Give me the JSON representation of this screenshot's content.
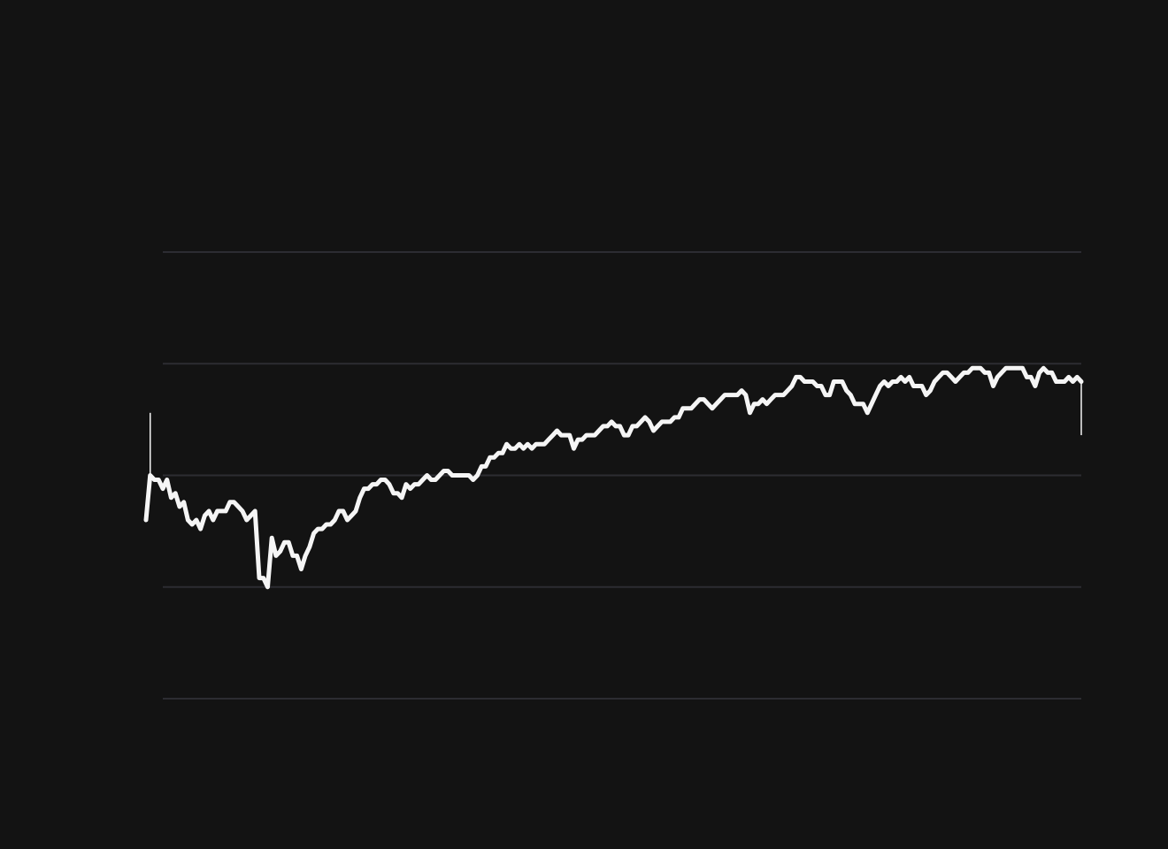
{
  "chart_data": {
    "type": "line",
    "title": "",
    "xlabel": "",
    "ylabel": "",
    "ylim": [
      0,
      100
    ],
    "grid": true,
    "gridlines_y": [
      0,
      25,
      50,
      75,
      100
    ],
    "colors": {
      "background": "#131313",
      "line": "#f5f5f5",
      "grid": "#2c2c32",
      "marker": "#f5f5f5"
    },
    "markers": [
      {
        "index": 1,
        "from": 50,
        "to": 64
      },
      {
        "index": "last",
        "from": 71,
        "to": 59
      }
    ],
    "values": [
      40,
      50,
      49,
      49,
      47,
      49,
      45,
      46,
      43,
      44,
      40,
      39,
      40,
      38,
      41,
      42,
      40,
      42,
      42,
      42,
      44,
      44,
      43,
      42,
      40,
      41,
      42,
      27,
      27,
      25,
      36,
      32,
      33,
      35,
      35,
      32,
      32,
      29,
      32,
      34,
      37,
      38,
      38,
      39,
      39,
      40,
      42,
      42,
      40,
      41,
      42,
      45,
      47,
      47,
      48,
      48,
      49,
      49,
      48,
      46,
      46,
      45,
      48,
      47,
      48,
      48,
      49,
      50,
      49,
      49,
      50,
      51,
      51,
      50,
      50,
      50,
      50,
      50,
      49,
      50,
      52,
      52,
      54,
      54,
      55,
      55,
      57,
      56,
      56,
      57,
      56,
      57,
      56,
      57,
      57,
      57,
      58,
      59,
      60,
      59,
      59,
      59,
      56,
      58,
      58,
      59,
      59,
      59,
      60,
      61,
      61,
      62,
      61,
      61,
      59,
      59,
      61,
      61,
      62,
      63,
      62,
      60,
      61,
      62,
      62,
      62,
      63,
      63,
      65,
      65,
      65,
      66,
      67,
      67,
      66,
      65,
      66,
      67,
      68,
      68,
      68,
      68,
      69,
      68,
      64,
      66,
      66,
      67,
      66,
      67,
      68,
      68,
      68,
      69,
      70,
      72,
      72,
      71,
      71,
      71,
      70,
      70,
      68,
      68,
      71,
      71,
      71,
      69,
      68,
      66,
      66,
      66,
      64,
      66,
      68,
      70,
      71,
      70,
      71,
      71,
      72,
      71,
      72,
      70,
      70,
      70,
      68,
      69,
      71,
      72,
      73,
      73,
      72,
      71,
      72,
      73,
      73,
      74,
      74,
      74,
      73,
      73,
      70,
      72,
      73,
      74,
      74,
      74,
      74,
      74,
      72,
      72,
      70,
      73,
      74,
      73,
      73,
      71,
      71,
      71,
      72,
      71,
      72,
      71
    ]
  }
}
